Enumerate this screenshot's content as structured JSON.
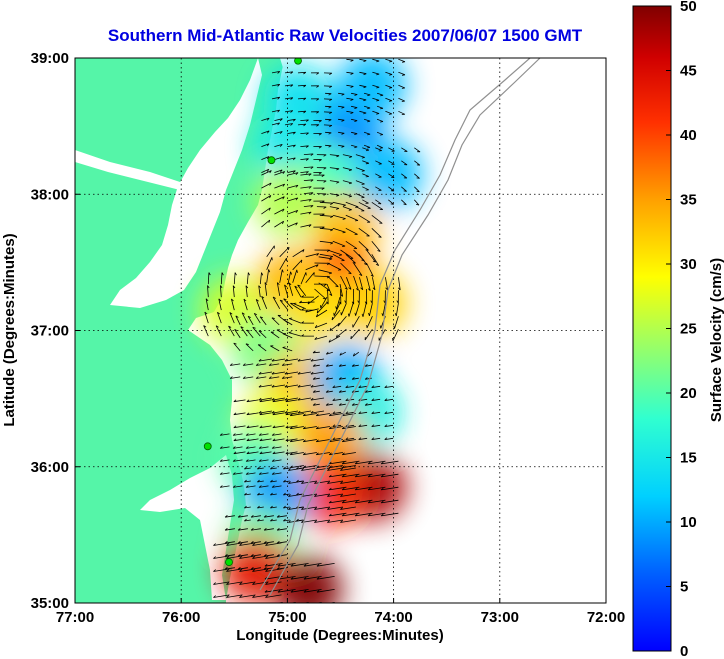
{
  "chart_data": {
    "type": "heatmap",
    "title": "Southern Mid-Atlantic Raw Velocities 2007/06/07 1500 GMT",
    "xlabel": "Longitude (Degrees:Minutes)",
    "ylabel": "Latitude (Degrees:Minutes)",
    "xlim": [
      -77,
      -72
    ],
    "ylim": [
      35,
      39
    ],
    "x_ticks": [
      {
        "value": -77,
        "label": "77:00"
      },
      {
        "value": -76,
        "label": "76:00"
      },
      {
        "value": -75,
        "label": "75:00"
      },
      {
        "value": -74,
        "label": "74:00"
      },
      {
        "value": -73,
        "label": "73:00"
      },
      {
        "value": -72,
        "label": "72:00"
      }
    ],
    "y_ticks": [
      {
        "value": 35,
        "label": "35:00"
      },
      {
        "value": 36,
        "label": "36:00"
      },
      {
        "value": 37,
        "label": "37:00"
      },
      {
        "value": 38,
        "label": "38:00"
      },
      {
        "value": 39,
        "label": "39:00"
      }
    ],
    "grid": true,
    "colorbar": {
      "label": "Surface Velocity (cm/s)",
      "range": [
        0,
        50
      ],
      "ticks": [
        "0",
        "5",
        "10",
        "15",
        "20",
        "25",
        "30",
        "35",
        "40",
        "45",
        "50"
      ],
      "placement": "right"
    },
    "land_color": "#55f5a8",
    "title_color": "#0000e0",
    "radar_sites": [
      {
        "lon": -74.9,
        "lat": 38.98
      },
      {
        "lon": -75.15,
        "lat": 38.25
      },
      {
        "lon": -75.75,
        "lat": 36.15
      },
      {
        "lon": -75.55,
        "lat": 35.3
      }
    ],
    "velocity_regions": [
      {
        "lon": -74.4,
        "lat": 38.55,
        "speed": 8
      },
      {
        "lon": -74.2,
        "lat": 38.8,
        "speed": 11
      },
      {
        "lon": -74.9,
        "lat": 38.7,
        "speed": 14
      },
      {
        "lon": -75.0,
        "lat": 38.35,
        "speed": 15
      },
      {
        "lon": -74.6,
        "lat": 38.1,
        "speed": 19
      },
      {
        "lon": -74.05,
        "lat": 38.15,
        "speed": 11
      },
      {
        "lon": -75.0,
        "lat": 37.95,
        "speed": 25
      },
      {
        "lon": -74.45,
        "lat": 37.75,
        "speed": 33
      },
      {
        "lon": -74.5,
        "lat": 37.4,
        "speed": 40
      },
      {
        "lon": -74.95,
        "lat": 37.35,
        "speed": 34
      },
      {
        "lon": -75.5,
        "lat": 37.15,
        "speed": 27
      },
      {
        "lon": -74.75,
        "lat": 37.15,
        "speed": 31
      },
      {
        "lon": -74.2,
        "lat": 37.2,
        "speed": 32
      },
      {
        "lon": -75.2,
        "lat": 36.85,
        "speed": 22
      },
      {
        "lon": -74.9,
        "lat": 36.6,
        "speed": 33
      },
      {
        "lon": -74.45,
        "lat": 36.65,
        "speed": 10
      },
      {
        "lon": -74.25,
        "lat": 36.4,
        "speed": 16
      },
      {
        "lon": -75.15,
        "lat": 36.3,
        "speed": 28
      },
      {
        "lon": -74.6,
        "lat": 36.2,
        "speed": 35
      },
      {
        "lon": -75.3,
        "lat": 36.05,
        "speed": 20
      },
      {
        "lon": -74.2,
        "lat": 35.85,
        "speed": 48
      },
      {
        "lon": -74.6,
        "lat": 35.8,
        "speed": 42
      },
      {
        "lon": -75.1,
        "lat": 35.8,
        "speed": 9
      },
      {
        "lon": -75.25,
        "lat": 35.45,
        "speed": 21
      },
      {
        "lon": -75.3,
        "lat": 35.25,
        "speed": 44
      },
      {
        "lon": -74.8,
        "lat": 35.1,
        "speed": 50
      }
    ]
  }
}
